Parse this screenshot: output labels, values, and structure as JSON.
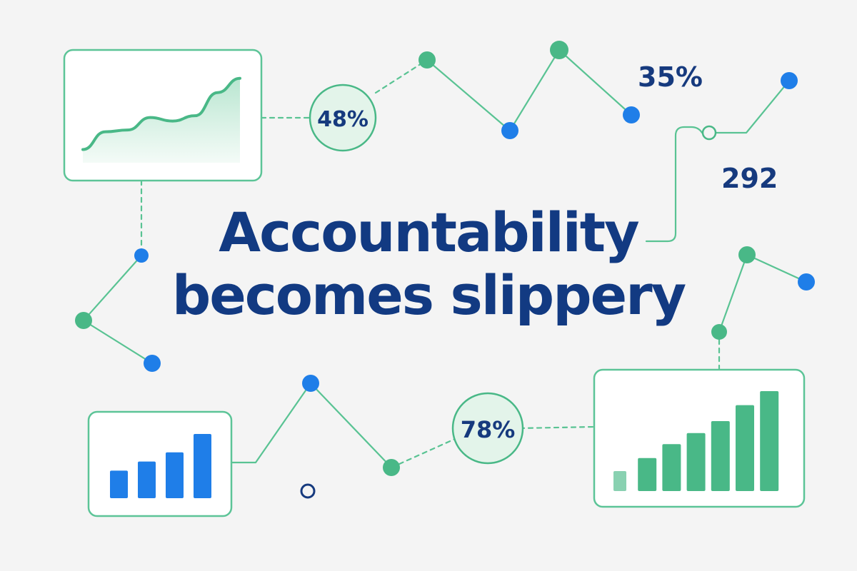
{
  "headline": {
    "line1": "Accountability",
    "line2": "becomes slippery"
  },
  "badges": [
    {
      "label": "48%"
    },
    {
      "label": "78%"
    }
  ],
  "stats": [
    {
      "label": "35%"
    },
    {
      "label": "292"
    }
  ],
  "colors": {
    "background": "#f4f4f4",
    "green": "#49b887",
    "green_light": "#e5f5ec",
    "blue": "#1f7ee8",
    "navy": "#123a82",
    "card_border": "#5cc497"
  },
  "chart_data": [
    {
      "type": "area",
      "title": "",
      "x": [
        1,
        2,
        3,
        4,
        5,
        6,
        7,
        8
      ],
      "values": [
        1,
        3,
        3.2,
        4.6,
        4.2,
        4.8,
        7.4,
        9
      ],
      "series_color": "#49b887",
      "grid": false
    },
    {
      "type": "bar",
      "title": "",
      "categories": [
        "1",
        "2",
        "3",
        "4"
      ],
      "values": [
        3,
        4,
        5,
        7
      ],
      "bar_color": "#1f7ee8",
      "grid": false
    },
    {
      "type": "bar",
      "title": "",
      "categories": [
        "1",
        "2",
        "3",
        "4",
        "5",
        "6",
        "7"
      ],
      "values": [
        2,
        3.3,
        4.7,
        5.8,
        7.0,
        8.6,
        10
      ],
      "bar_color": "#49b887",
      "grid": false
    }
  ]
}
